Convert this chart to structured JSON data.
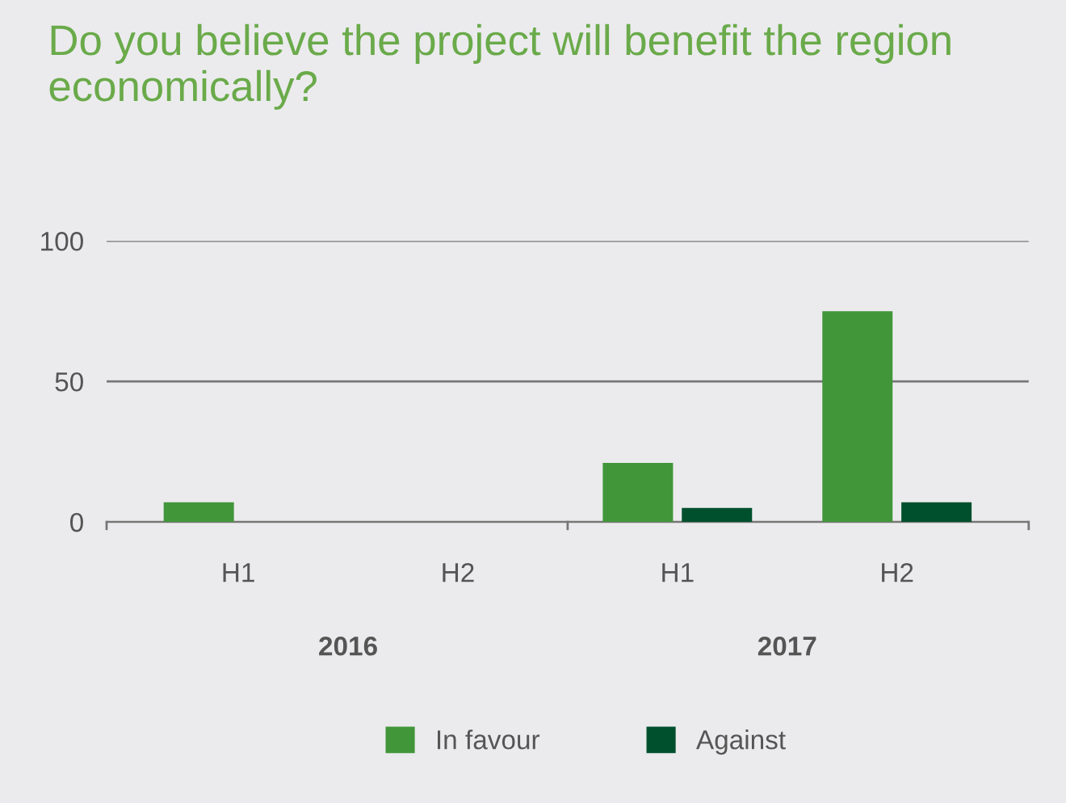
{
  "chart_data": {
    "type": "bar",
    "title": "Do you believe the project will benefit the region economically?",
    "categories": [
      "H1",
      "H2",
      "H1",
      "H2"
    ],
    "series": [
      {
        "name": "In favour",
        "color": "#42963a",
        "values": [
          7,
          null,
          21,
          75
        ]
      },
      {
        "name": "Against",
        "color": "#00502e",
        "values": [
          null,
          null,
          5,
          7
        ]
      }
    ],
    "annotations": [
      "2016",
      "2017"
    ],
    "ylim": [
      0,
      100
    ],
    "yticks": [
      0,
      50,
      100
    ],
    "grid": "y",
    "legend": "bottom"
  }
}
